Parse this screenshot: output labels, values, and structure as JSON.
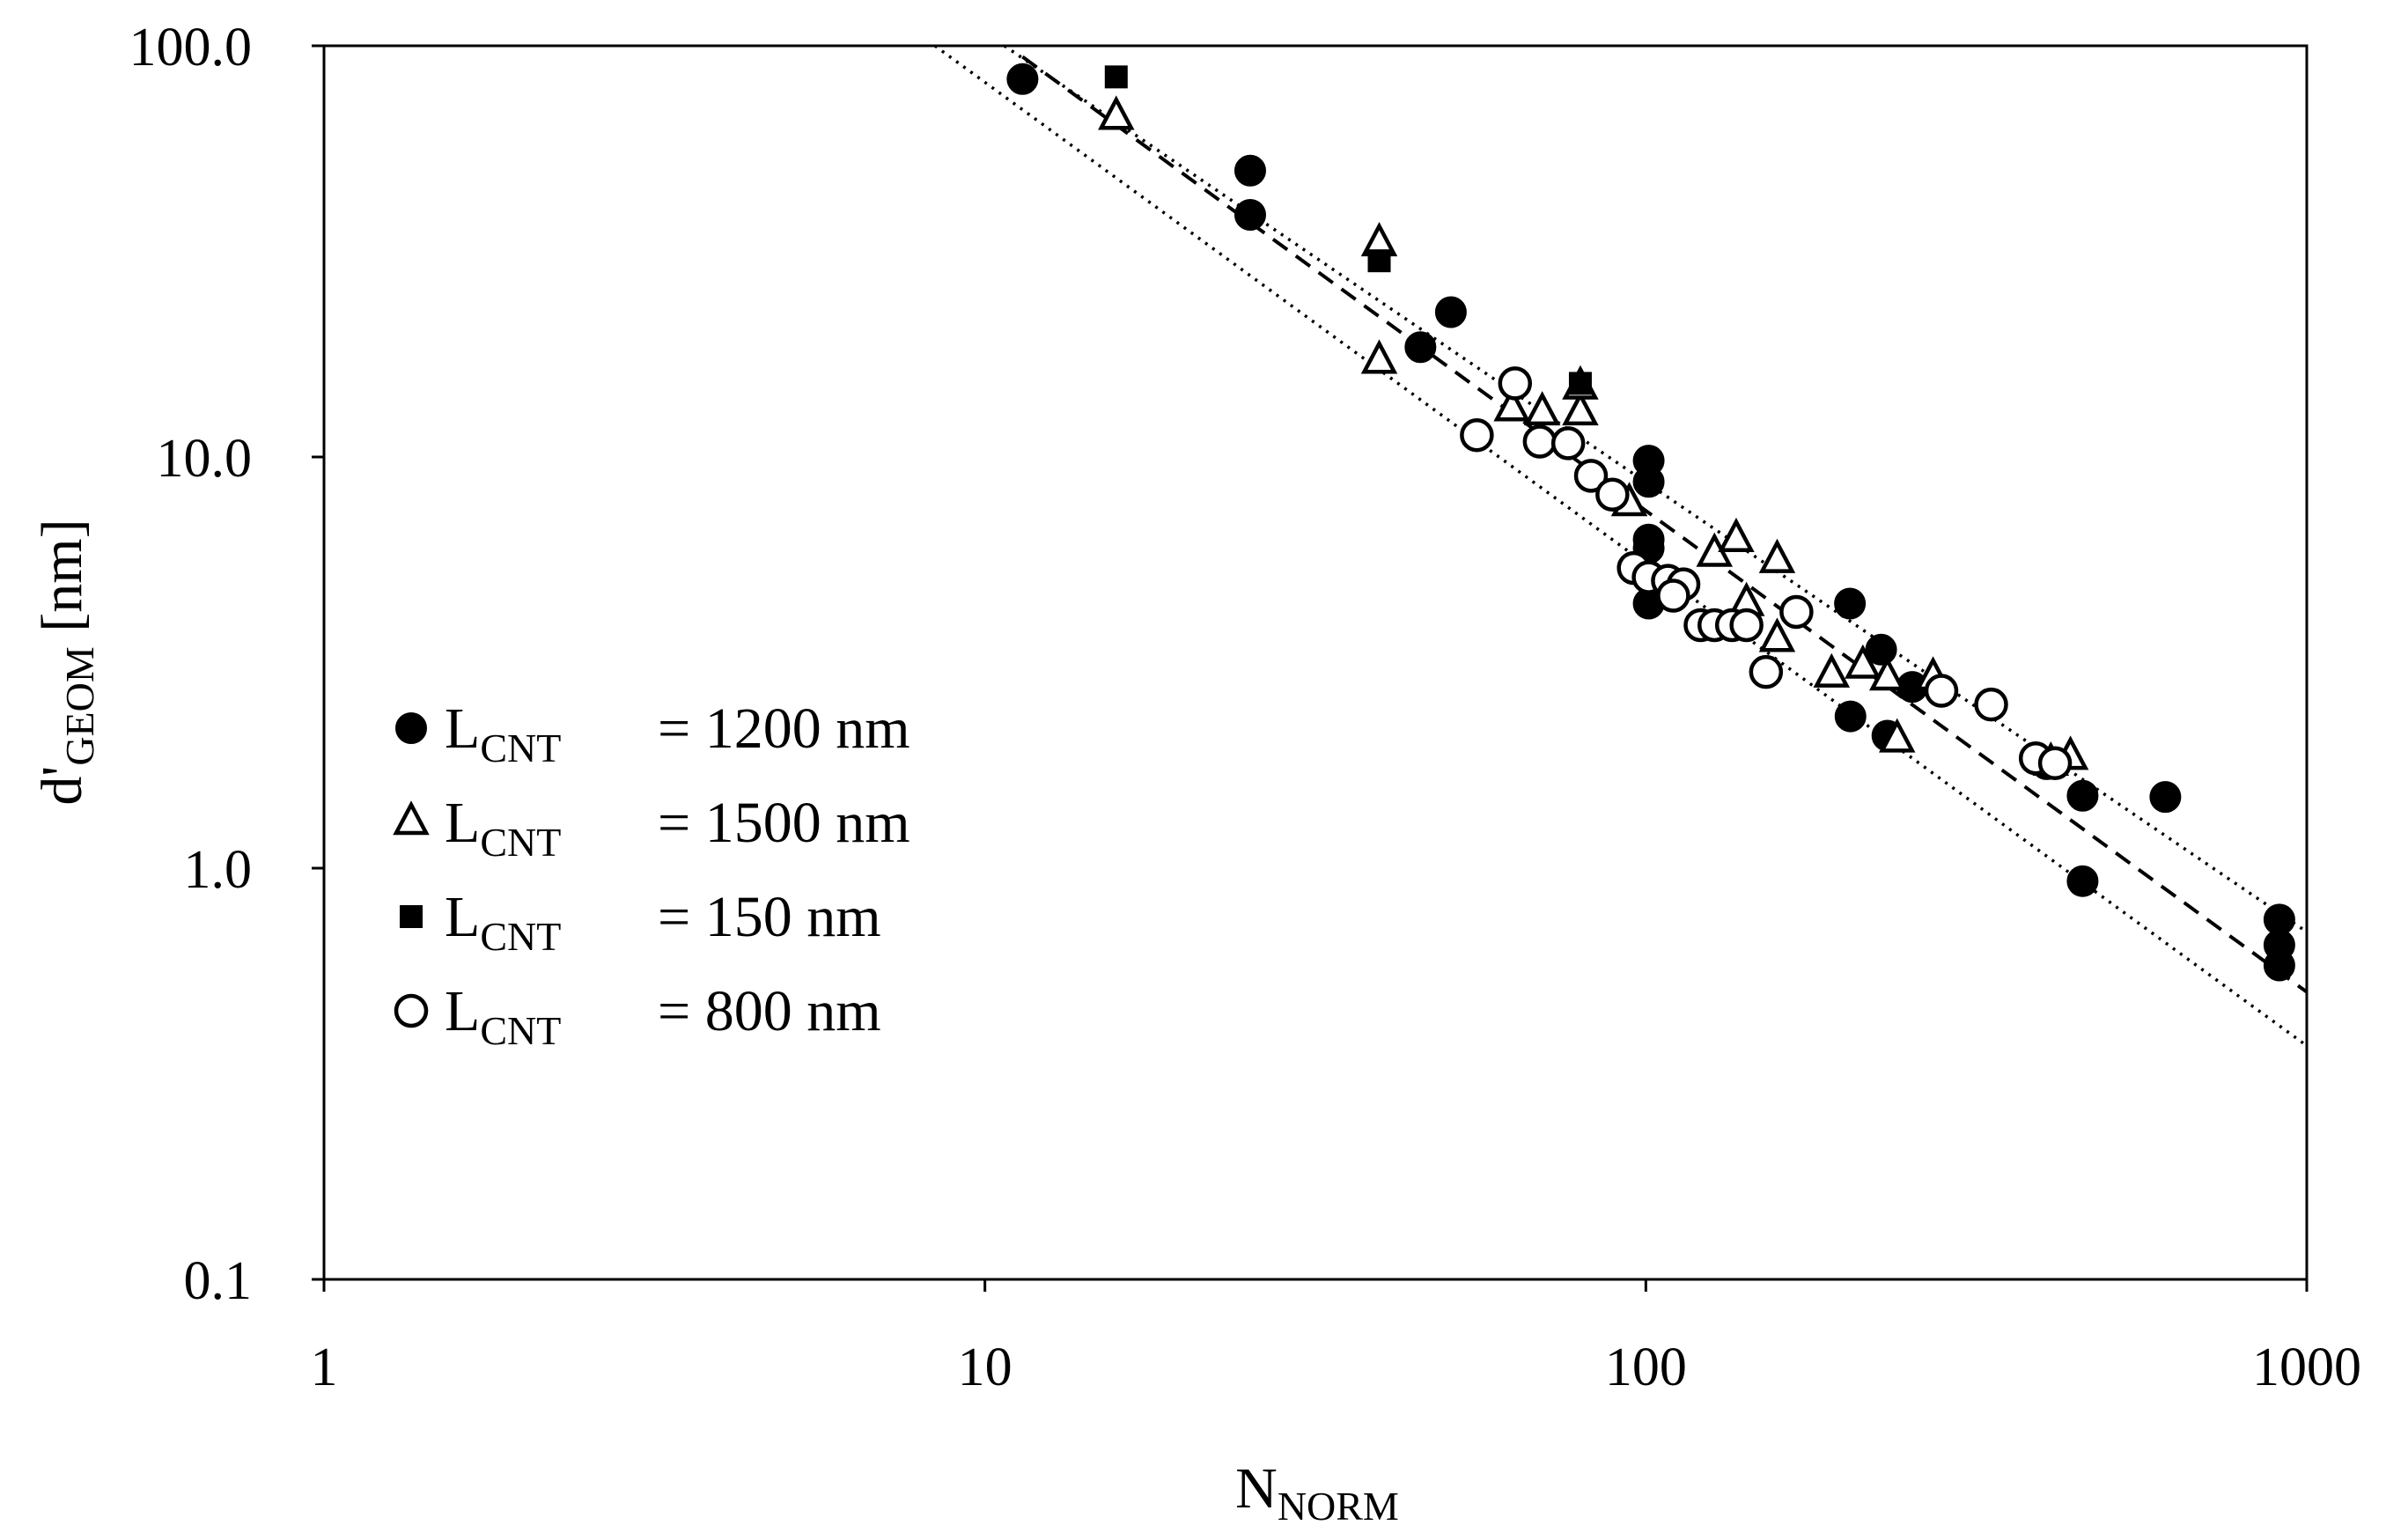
{
  "chart_data": {
    "type": "scatter",
    "x_label": {
      "main": "N",
      "sub": "NORM"
    },
    "y_label": {
      "main": "d'",
      "sub": "GEOM",
      "tail": " [nm]"
    },
    "log_x": true,
    "log_y": true,
    "xlim": [
      1,
      1000
    ],
    "ylim": [
      0.1,
      100
    ],
    "xticks": [
      1,
      10,
      100,
      1000
    ],
    "yticks": [
      0.1,
      {
        "value": 1,
        "label": "1.0"
      },
      {
        "value": 10,
        "label": "10.0"
      },
      {
        "value": 100,
        "label": "100.0"
      }
    ],
    "legend": "left",
    "series": [
      {
        "name": {
          "main": "L",
          "sub": "CNT",
          "value": "= 1200 nm"
        },
        "marker": "circle",
        "filled": true,
        "color": "#000000",
        "x": [
          11.4,
          25.2,
          25.2,
          50.7,
          45.6,
          101,
          101,
          101,
          101,
          101,
          203.6,
          227,
          253,
          204,
          232,
          404,
          458,
          458,
          611,
          909,
          909,
          909
        ],
        "values": [
          83,
          49.7,
          38.8,
          22.5,
          18.5,
          9.8,
          8.7,
          6.3,
          6.0,
          4.4,
          4.4,
          3.4,
          2.76,
          2.34,
          2.1,
          1.79,
          1.5,
          0.93,
          1.49,
          0.75,
          0.65,
          0.58
        ]
      },
      {
        "name": {
          "main": "L",
          "sub": "CNT",
          "value": "= 1500 nm"
        },
        "marker": "triangle",
        "filled": false,
        "color": "#000000",
        "x": [
          15.8,
          39.5,
          39.5,
          62.7,
          69.7,
          79.6,
          79.6,
          94.4,
          127,
          137,
          158,
          142,
          158,
          191,
          213,
          232,
          272,
          240,
          439,
          410
        ],
        "values": [
          67,
          33,
          17.1,
          13.1,
          12.8,
          12.8,
          14.8,
          7.7,
          5.8,
          6.3,
          5.6,
          4.4,
          3.6,
          2.95,
          3.1,
          2.9,
          2.9,
          2.05,
          1.86,
          1.8
        ]
      },
      {
        "name": {
          "main": "L",
          "sub": "CNT",
          "value": "= 150 nm"
        },
        "marker": "square",
        "filled": true,
        "color": "#000000",
        "x": [
          15.8,
          39.5,
          79.6
        ],
        "values": [
          84,
          30,
          15.1
        ]
      },
      {
        "name": {
          "main": "L",
          "sub": "CNT",
          "value": "= 800 nm"
        },
        "marker": "circle",
        "filled": false,
        "color": "#000000",
        "x": [
          55.5,
          63.4,
          69.1,
          76.3,
          82.6,
          89,
          95.9,
          101,
          108,
          114,
          110,
          121,
          127,
          135,
          142,
          152,
          169,
          280,
          333,
          389,
          416
        ],
        "values": [
          11.3,
          15.1,
          10.9,
          10.8,
          9.0,
          8.1,
          5.37,
          5.1,
          5.0,
          4.9,
          4.6,
          3.9,
          3.9,
          3.9,
          3.9,
          3.0,
          4.2,
          2.7,
          2.5,
          1.85,
          1.8
        ]
      }
    ],
    "fit_lines": [
      {
        "style": "dashed",
        "x": [
          11.4,
          1000
        ],
        "y": [
          94,
          0.5
        ]
      },
      {
        "style": "dotted",
        "x": [
          10.7,
          1000
        ],
        "y": [
          100,
          0.7
        ]
      },
      {
        "style": "dotted",
        "x": [
          8.4,
          1000
        ],
        "y": [
          100,
          0.37
        ]
      }
    ]
  }
}
